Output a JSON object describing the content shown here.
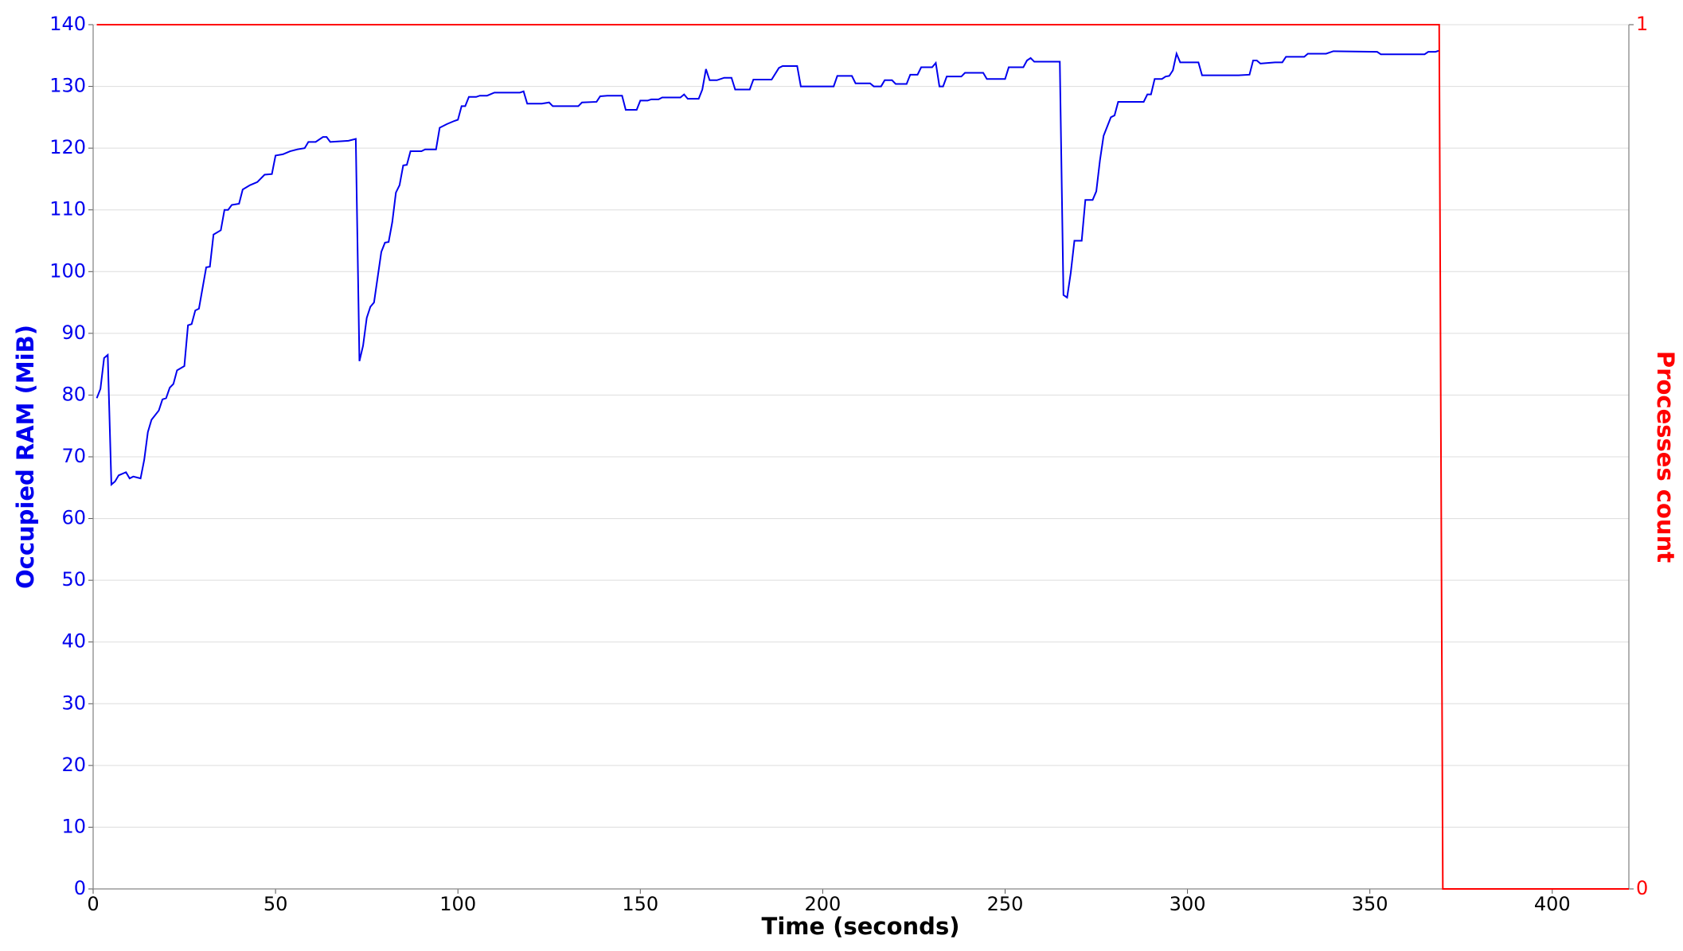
{
  "chart_data": {
    "type": "line",
    "xlabel": "Time (seconds)",
    "ylabel": "Occupied RAM (MiB)",
    "y2label": "Processes count",
    "xlim": [
      0,
      421
    ],
    "xticks": [
      0,
      50,
      100,
      150,
      200,
      250,
      300,
      350,
      400
    ],
    "ylim": [
      0,
      140
    ],
    "yticks": [
      0,
      10,
      20,
      30,
      40,
      50,
      60,
      70,
      80,
      90,
      100,
      110,
      120,
      130,
      140
    ],
    "y2lim": [
      0,
      1
    ],
    "y2ticks": [
      0,
      1
    ],
    "grid": true,
    "series": [
      {
        "name": "Occupied RAM (MiB)",
        "color": "#0000ee",
        "x": [
          1,
          2,
          3,
          4,
          5,
          6,
          7,
          9,
          10,
          11,
          13,
          14,
          15,
          16,
          18,
          19,
          20,
          21,
          22,
          23,
          25,
          26,
          27,
          28,
          29,
          31,
          32,
          33,
          35,
          36,
          37,
          38,
          40,
          41,
          43,
          45,
          47,
          49,
          50,
          52,
          54,
          56,
          58,
          59,
          61,
          63,
          64,
          65,
          70,
          72,
          73,
          74,
          75,
          76,
          77,
          79,
          80,
          81,
          82,
          83,
          84,
          85,
          86,
          87,
          90,
          91,
          94,
          95,
          97,
          99,
          100,
          101,
          102,
          103,
          105,
          106,
          108,
          110,
          117,
          118,
          119,
          123,
          125,
          126,
          133,
          134,
          138,
          139,
          141,
          145,
          146,
          149,
          150,
          152,
          153,
          155,
          156,
          159,
          161,
          162,
          163,
          166,
          167,
          168,
          169,
          171,
          173,
          175,
          176,
          180,
          181,
          186,
          188,
          189,
          193,
          194,
          203,
          204,
          208,
          209,
          213,
          214,
          216,
          217,
          219,
          220,
          223,
          224,
          226,
          227,
          230,
          231,
          232,
          233,
          234,
          238,
          239,
          244,
          245,
          250,
          251,
          255,
          256,
          257,
          258,
          265,
          266,
          267,
          268,
          269,
          271,
          272,
          274,
          275,
          276,
          277,
          279,
          280,
          281,
          288,
          289,
          290,
          291,
          293,
          294,
          295,
          296,
          297,
          298,
          303,
          304,
          314,
          317,
          318,
          319,
          320,
          324,
          326,
          327,
          332,
          333,
          338,
          340,
          352,
          353,
          365,
          366,
          368,
          369
        ],
        "values": [
          79.5,
          81,
          86,
          86.5,
          65.5,
          66,
          67,
          67.5,
          66.5,
          66.8,
          66.5,
          69.5,
          74,
          76,
          77.5,
          79.3,
          79.5,
          81.2,
          81.8,
          84,
          84.7,
          91.3,
          91.5,
          93.7,
          94,
          100.7,
          100.8,
          106,
          106.7,
          110,
          110,
          110.8,
          111,
          113.3,
          114,
          114.5,
          115.7,
          115.8,
          118.8,
          119,
          119.5,
          119.8,
          120,
          121,
          121,
          121.8,
          121.8,
          121,
          121.2,
          121.5,
          85.5,
          88,
          92.5,
          94.3,
          95,
          103.2,
          104.7,
          104.8,
          108,
          112.8,
          114,
          117.2,
          117.3,
          119.5,
          119.5,
          119.8,
          119.8,
          123.3,
          123.9,
          124.4,
          124.6,
          126.8,
          126.8,
          128.3,
          128.3,
          128.5,
          128.5,
          129,
          129,
          129.2,
          127.2,
          127.2,
          127.4,
          126.8,
          126.8,
          127.4,
          127.5,
          128.4,
          128.5,
          128.5,
          126.2,
          126.2,
          127.7,
          127.7,
          127.9,
          127.9,
          128.2,
          128.2,
          128.2,
          128.7,
          128,
          128,
          129.5,
          132.8,
          131,
          131,
          131.4,
          131.4,
          129.5,
          129.5,
          131.1,
          131.1,
          133,
          133.3,
          133.3,
          130,
          130,
          131.7,
          131.7,
          130.5,
          130.5,
          130,
          130,
          131,
          131,
          130.4,
          130.4,
          131.9,
          131.9,
          133.1,
          133.1,
          133.8,
          130,
          130,
          131.6,
          131.6,
          132.2,
          132.2,
          131.2,
          131.2,
          133.1,
          133.1,
          134.2,
          134.6,
          134,
          134,
          96.2,
          95.8,
          99.8,
          105,
          105,
          111.6,
          111.6,
          113,
          118,
          122,
          125,
          125.3,
          127.5,
          127.5,
          128.7,
          128.7,
          131.2,
          131.2,
          131.6,
          131.7,
          132.6,
          135.3,
          133.9,
          133.9,
          131.8,
          131.8,
          131.9,
          134.2,
          134.2,
          133.7,
          133.9,
          133.9,
          134.8,
          134.8,
          135.3,
          135.3,
          135.7,
          135.6,
          135.2,
          135.2,
          135.6,
          135.6,
          135.8
        ]
      },
      {
        "name": "Processes count",
        "color": "#ff0000",
        "axis": "y2",
        "x": [
          1,
          369,
          370,
          421
        ],
        "values": [
          1,
          1,
          0,
          0
        ]
      }
    ]
  }
}
